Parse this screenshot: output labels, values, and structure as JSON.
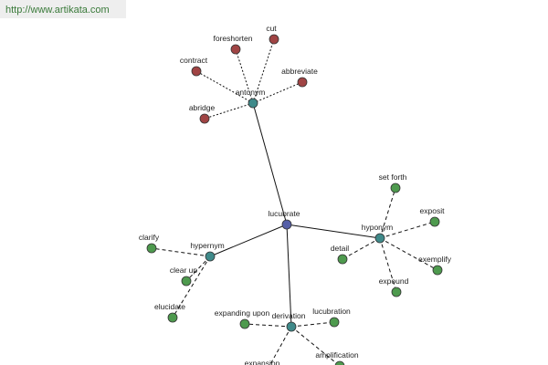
{
  "header": {
    "url": "http://www.artikata.com"
  },
  "nodes": [
    {
      "label": "lucubrate"
    },
    {
      "label": "antonym"
    },
    {
      "label": "cut"
    },
    {
      "label": "foreshorten"
    },
    {
      "label": "contract"
    },
    {
      "label": "abbreviate"
    },
    {
      "label": "abridge"
    },
    {
      "label": "hyponym"
    },
    {
      "label": "set forth"
    },
    {
      "label": "exposit"
    },
    {
      "label": "exemplify"
    },
    {
      "label": "expound"
    },
    {
      "label": "detail"
    },
    {
      "label": "hypernym"
    },
    {
      "label": "clarify"
    },
    {
      "label": "clear up"
    },
    {
      "label": "elucidate"
    },
    {
      "label": "derivation"
    },
    {
      "label": "expanding upon"
    },
    {
      "label": "lucubration"
    },
    {
      "label": "expansion"
    },
    {
      "label": "amplification"
    }
  ]
}
